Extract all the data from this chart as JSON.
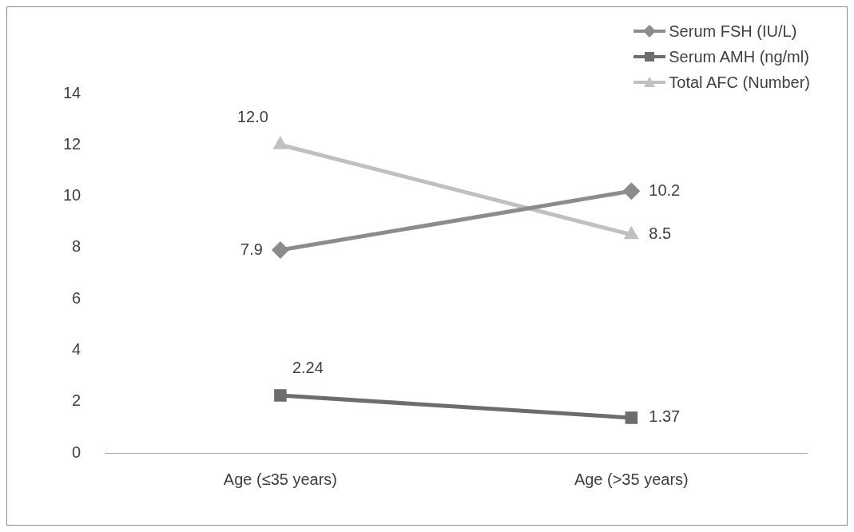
{
  "chart_data": {
    "type": "line",
    "categories": [
      "Age (≤35 years)",
      "Age (>35 years)"
    ],
    "series": [
      {
        "name": "Serum FSH (IU/L)",
        "color": "#8c8c8c",
        "marker": "diamond",
        "values": [
          7.9,
          10.2
        ],
        "value_labels": [
          "7.9",
          "10.2"
        ]
      },
      {
        "name": "Serum AMH (ng/ml)",
        "color": "#6d6d6d",
        "marker": "square",
        "values": [
          2.24,
          1.37
        ],
        "value_labels": [
          "2.24",
          "1.37"
        ]
      },
      {
        "name": "Total AFC (Number)",
        "color": "#c0c0c0",
        "marker": "triangle",
        "values": [
          12.0,
          8.5
        ],
        "value_labels": [
          "12.0",
          "8.5"
        ]
      }
    ],
    "ylim": [
      0,
      14
    ],
    "yticks": [
      0,
      2,
      4,
      6,
      8,
      10,
      12,
      14
    ],
    "grid": false,
    "legend": "top right"
  }
}
